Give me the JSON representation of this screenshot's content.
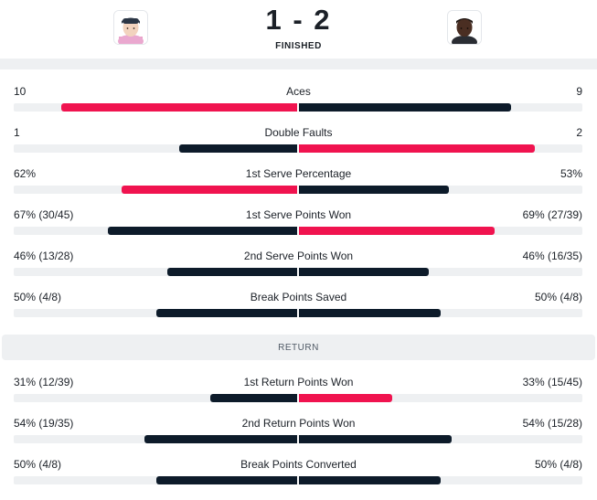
{
  "match": {
    "score": "1 - 2",
    "status": "FINISHED"
  },
  "players": [
    {
      "side": "left",
      "avatar_icon": "player-avatar"
    },
    {
      "side": "right",
      "avatar_icon": "player-avatar"
    }
  ],
  "colors": {
    "highlight": "#f0134f",
    "dark": "#0d1b2a",
    "track": "#eef0f2"
  },
  "sections": [
    {
      "header": "",
      "stats": [
        {
          "name": "Aces",
          "left": "10",
          "right": "9",
          "left_value": 10,
          "right_value": 9,
          "leader": "left"
        },
        {
          "name": "Double Faults",
          "left": "1",
          "right": "2",
          "left_value": 1,
          "right_value": 2,
          "leader": "right"
        },
        {
          "name": "1st Serve Percentage",
          "left": "62%",
          "right": "53%",
          "left_value": 62,
          "right_value": 53,
          "leader": "left"
        },
        {
          "name": "1st Serve Points Won",
          "left": "67% (30/45)",
          "right": "69% (27/39)",
          "left_value": 67,
          "right_value": 69,
          "leader": "right"
        },
        {
          "name": "2nd Serve Points Won",
          "left": "46% (13/28)",
          "right": "46% (16/35)",
          "left_value": 46,
          "right_value": 46,
          "leader": "none"
        },
        {
          "name": "Break Points Saved",
          "left": "50% (4/8)",
          "right": "50% (4/8)",
          "left_value": 50,
          "right_value": 50,
          "leader": "none"
        }
      ]
    },
    {
      "header": "RETURN",
      "stats": [
        {
          "name": "1st Return Points Won",
          "left": "31% (12/39)",
          "right": "33% (15/45)",
          "left_value": 31,
          "right_value": 33,
          "leader": "right"
        },
        {
          "name": "2nd Return Points Won",
          "left": "54% (19/35)",
          "right": "54% (15/28)",
          "left_value": 54,
          "right_value": 54,
          "leader": "none"
        },
        {
          "name": "Break Points Converted",
          "left": "50% (4/8)",
          "right": "50% (4/8)",
          "left_value": 50,
          "right_value": 50,
          "leader": "none"
        }
      ]
    }
  ]
}
